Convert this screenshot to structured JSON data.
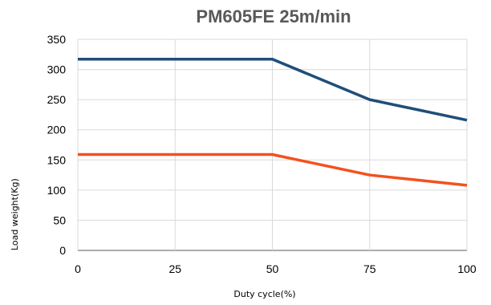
{
  "chart_data": {
    "type": "line",
    "title": "PM605FE 25m/min",
    "xlabel": "Duty cycle(%)",
    "ylabel": "Load weight(Kg)",
    "x": [
      0,
      25,
      50,
      75,
      100
    ],
    "xticks": [
      "0",
      "25",
      "50",
      "75",
      "100"
    ],
    "yticks": [
      "0",
      "50",
      "100",
      "150",
      "200",
      "250",
      "300",
      "350"
    ],
    "xlim": [
      0,
      100
    ],
    "ylim": [
      0,
      350
    ],
    "grid": true,
    "legend": "none",
    "series": [
      {
        "color": "#1f4e79",
        "values": [
          317,
          317,
          317,
          250,
          216
        ]
      },
      {
        "color": "#f4511e",
        "values": [
          159,
          159,
          159,
          125,
          108
        ]
      }
    ]
  }
}
